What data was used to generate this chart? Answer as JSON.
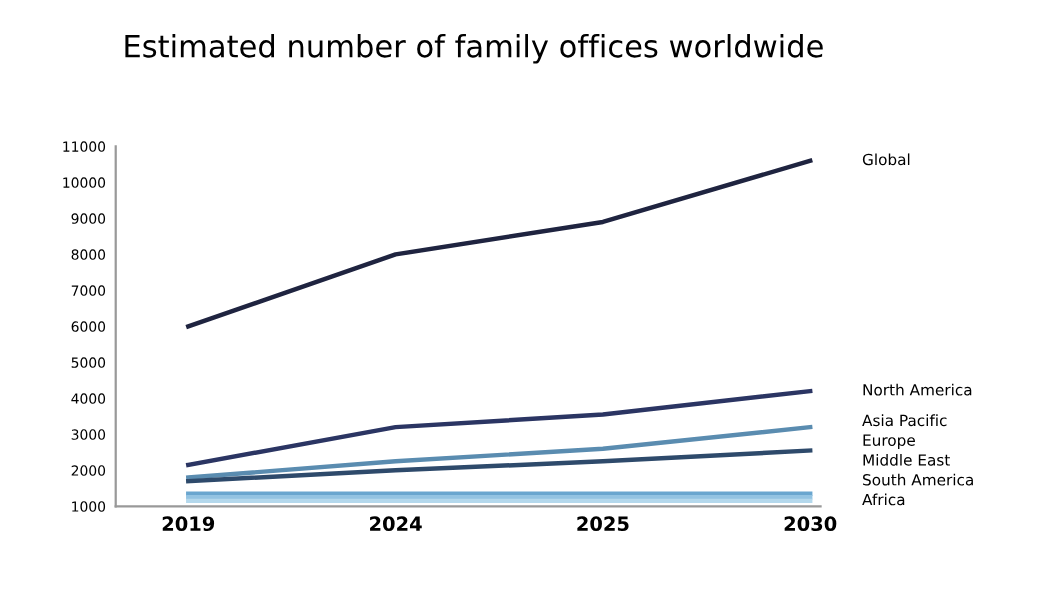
{
  "chart_data": {
    "type": "line",
    "title": "Estimated number of family offices worldwide",
    "categories": [
      "2019",
      "2024",
      "2025",
      "2030"
    ],
    "ylim": [
      1000,
      11000
    ],
    "yticks": [
      1000,
      2000,
      3000,
      4000,
      5000,
      6000,
      7000,
      8000,
      9000,
      10000,
      11000
    ],
    "grid": false,
    "legend": false,
    "marker": "none",
    "line_style": "solid",
    "series": [
      {
        "name": "Global",
        "color": "#1f2440",
        "values": [
          6000,
          8000,
          8900,
          10600
        ]
      },
      {
        "name": "North America",
        "color": "#2b3563",
        "values": [
          2150,
          3200,
          3550,
          4200
        ]
      },
      {
        "name": "Asia Pacific",
        "color": "#5a8cb0",
        "values": [
          1800,
          2250,
          2600,
          3200
        ]
      },
      {
        "name": "Europe",
        "color": "#2e4a6b",
        "values": [
          1700,
          2000,
          2250,
          2550
        ]
      },
      {
        "name": "Middle East",
        "color": "#6aa6cf",
        "values": [
          1350,
          1350,
          1350,
          1350
        ]
      },
      {
        "name": "South America",
        "color": "#93c3e2",
        "values": [
          1250,
          1250,
          1250,
          1250
        ]
      },
      {
        "name": "Africa",
        "color": "#b4d8ec",
        "values": [
          1150,
          1150,
          1150,
          1150
        ]
      }
    ]
  }
}
